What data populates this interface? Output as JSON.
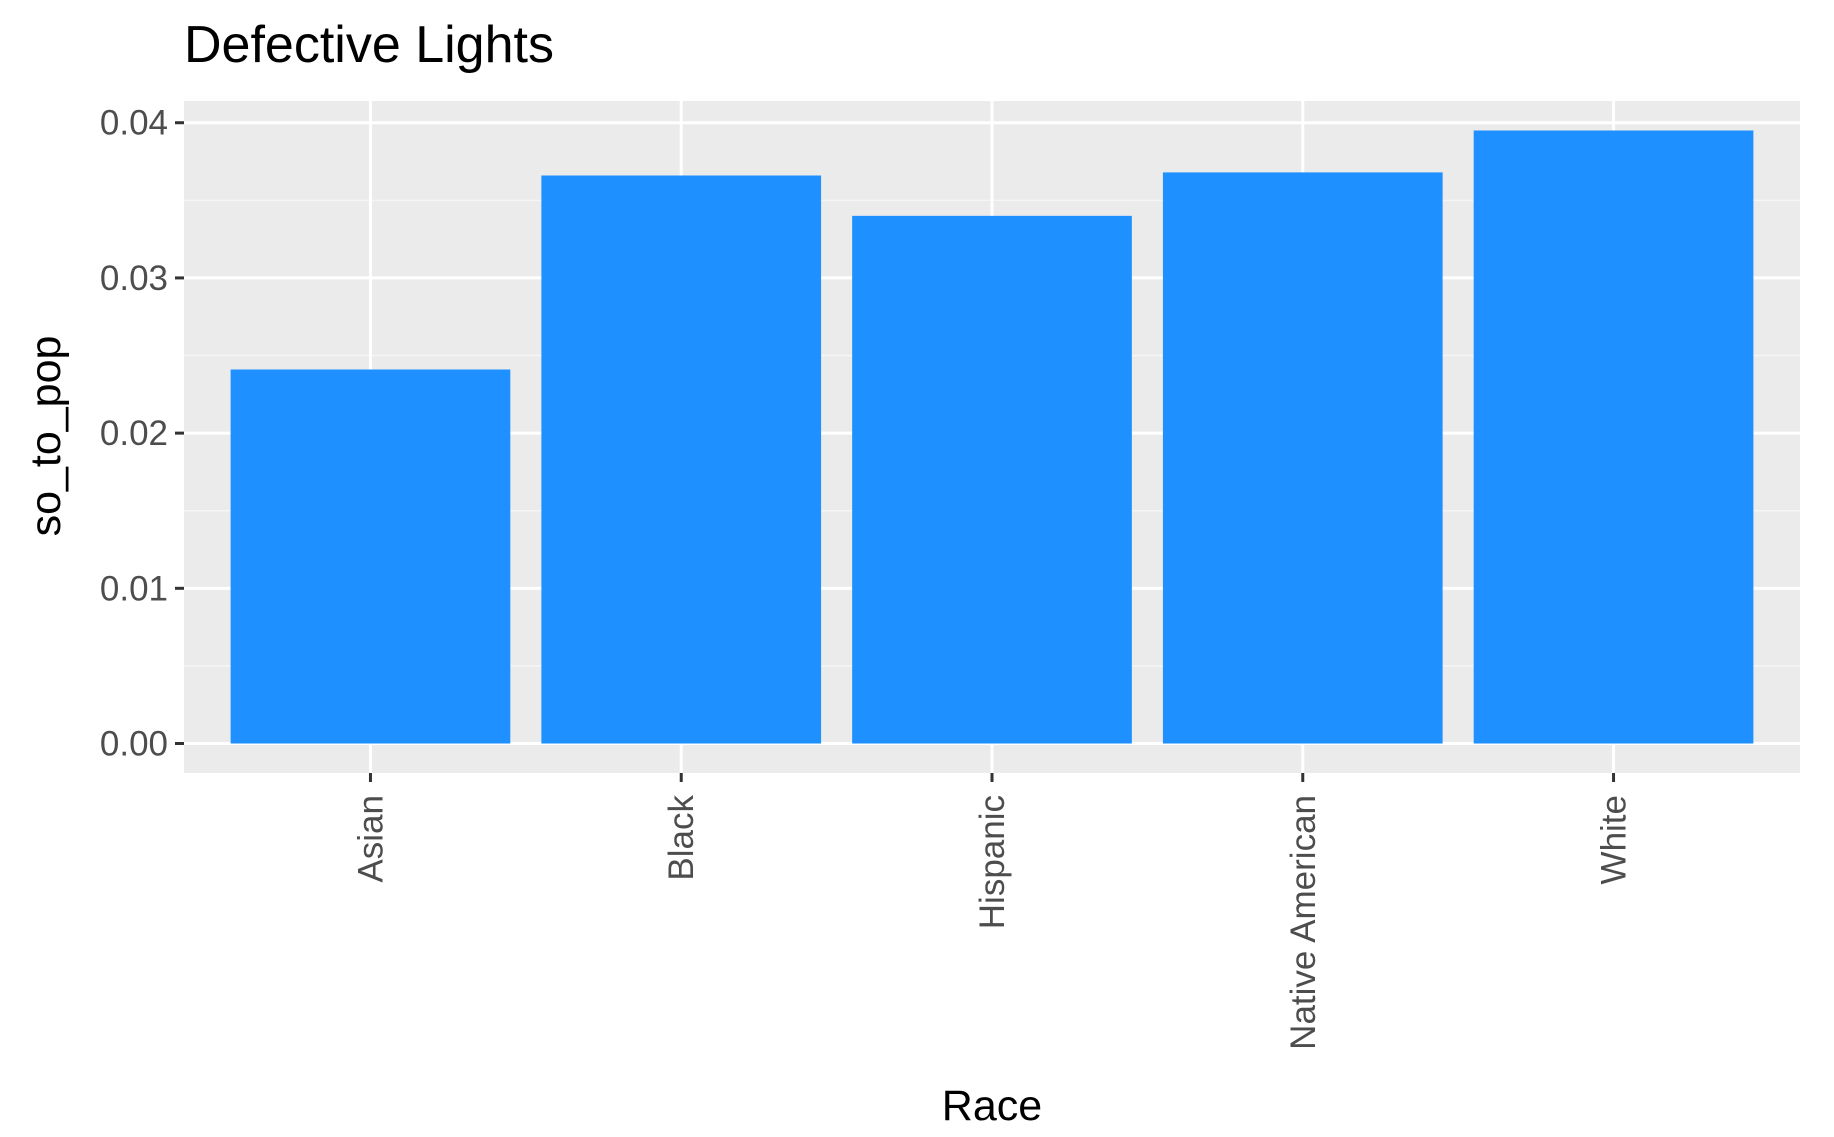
{
  "chart_data": {
    "type": "bar",
    "title": "Defective Lights",
    "xlabel": "Race",
    "ylabel": "so_to_pop",
    "categories": [
      "Asian",
      "Black",
      "Hispanic",
      "Native American",
      "White"
    ],
    "values": [
      0.0241,
      0.0366,
      0.034,
      0.0368,
      0.0395
    ],
    "ylim": [
      -0.0019,
      0.0414
    ],
    "yticks": [
      0.0,
      0.01,
      0.02,
      0.03,
      0.04
    ],
    "ytick_labels": [
      "0.00",
      "0.01",
      "0.02",
      "0.03",
      "0.04"
    ],
    "x_tick_label_rotation": "vertical",
    "grid": true,
    "legend": "none",
    "colors": {
      "bar": "#1e90ff",
      "panel_background": "#ebebeb",
      "grid_major": "#ffffff",
      "grid_minor": "#f5f5f5",
      "tick_label": "#4d4d4d",
      "tick_mark": "#333333"
    }
  }
}
